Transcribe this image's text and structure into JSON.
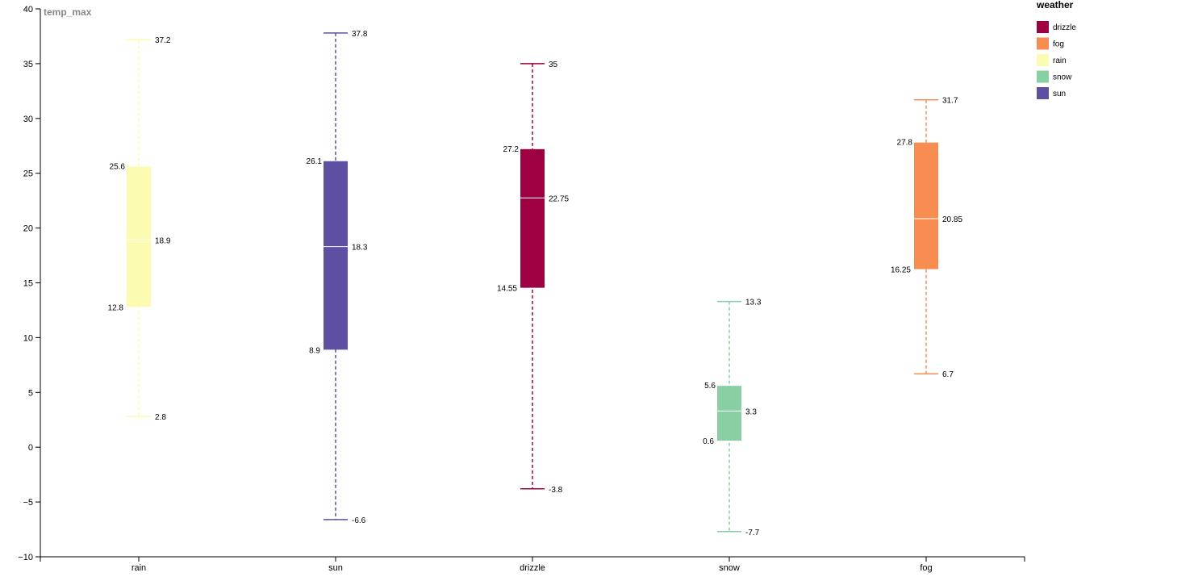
{
  "chart_data": {
    "type": "box",
    "ylabel": "temp_max",
    "ylim": [
      -10,
      40
    ],
    "yticks": [
      -10,
      -5,
      0,
      5,
      10,
      15,
      20,
      25,
      30,
      35,
      40
    ],
    "ytick_labels": [
      "−10",
      "−5",
      "0",
      "5",
      "10",
      "15",
      "20",
      "25",
      "30",
      "35",
      "40"
    ],
    "categories": [
      "rain",
      "sun",
      "drizzle",
      "snow",
      "fog"
    ],
    "boxes": [
      {
        "category": "rain",
        "min": 2.8,
        "q1": 12.8,
        "median": 18.9,
        "q3": 25.6,
        "max": 37.2,
        "labels": {
          "min": "2.8",
          "q1": "12.8",
          "median": "18.9",
          "q3": "25.6",
          "max": "37.2"
        },
        "color": "#fbfbb2"
      },
      {
        "category": "sun",
        "min": -6.6,
        "q1": 8.9,
        "median": 18.3,
        "q3": 26.1,
        "max": 37.8,
        "labels": {
          "min": "-6.6",
          "q1": "8.9",
          "median": "18.3",
          "q3": "26.1",
          "max": "37.8"
        },
        "color": "#5e4fa2"
      },
      {
        "category": "drizzle",
        "min": -3.8,
        "q1": 14.55,
        "median": 22.75,
        "q3": 27.2,
        "max": 35,
        "labels": {
          "min": "-3.8",
          "q1": "14.55",
          "median": "22.75",
          "q3": "27.2",
          "max": "35"
        },
        "color": "#9e0142"
      },
      {
        "category": "snow",
        "min": -7.7,
        "q1": 0.6,
        "median": 3.3,
        "q3": 5.6,
        "max": 13.3,
        "labels": {
          "min": "-7.7",
          "q1": "0.6",
          "median": "3.3",
          "q3": "5.6",
          "max": "13.3"
        },
        "color": "#88cfa4"
      },
      {
        "category": "fog",
        "min": 6.7,
        "q1": 16.25,
        "median": 20.85,
        "q3": 27.8,
        "max": 31.7,
        "labels": {
          "min": "6.7",
          "q1": "16.25",
          "median": "20.85",
          "q3": "27.8",
          "max": "31.7"
        },
        "color": "#f88d52"
      }
    ],
    "legend": {
      "title": "weather",
      "placement": "top-right",
      "items": [
        {
          "label": "drizzle",
          "color": "#9e0142"
        },
        {
          "label": "fog",
          "color": "#f88d52"
        },
        {
          "label": "rain",
          "color": "#fbfbb2"
        },
        {
          "label": "snow",
          "color": "#88cfa4"
        },
        {
          "label": "sun",
          "color": "#5e4fa2"
        }
      ]
    }
  }
}
